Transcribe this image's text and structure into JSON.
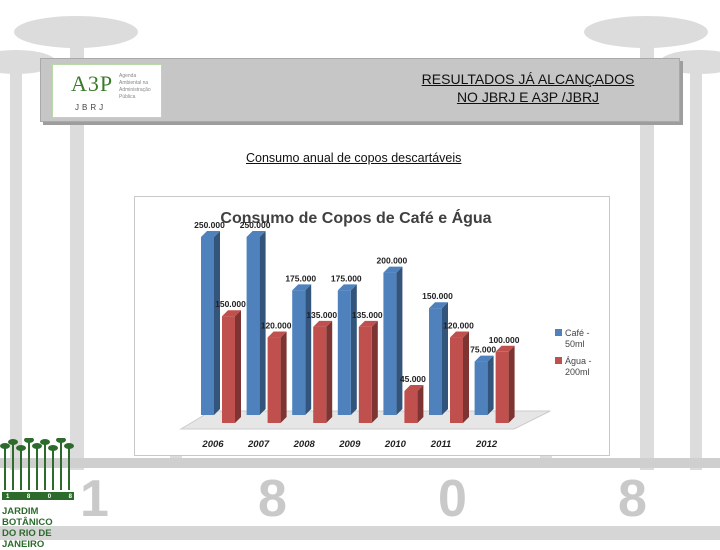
{
  "header": {
    "line1": "RESULTADOS JÁ ALCANÇADOS",
    "line2": "NO JBRJ E A3P /JBRJ"
  },
  "logo": {
    "brand": "A3P",
    "org": "JBRJ",
    "sub": [
      "Agenda",
      "Ambiental na",
      "Administração",
      "Pública"
    ]
  },
  "subtitle": "Consumo anual de copos descartáveis",
  "background": {
    "digits": [
      "1",
      "8",
      "0",
      "8"
    ]
  },
  "jbrj_logo": {
    "year_digits": [
      "1",
      "8",
      "0",
      "8"
    ],
    "line1": "JARDIM BOTÂNICO",
    "line2": "DO RIO DE JANEIRO"
  },
  "colors": {
    "cafe": "#4f81bd",
    "agua": "#c0504d",
    "title": "#404040",
    "header_band": "#c6c6c6"
  },
  "chart_data": {
    "type": "bar",
    "title": "Consumo de Copos de Café e Água",
    "categories": [
      "2006",
      "2007",
      "2008",
      "2009",
      "2010",
      "2011",
      "2012"
    ],
    "series": [
      {
        "name": "Café - 50ml",
        "values": [
          250000,
          250000,
          175000,
          175000,
          200000,
          150000,
          75000
        ],
        "labels": [
          "250.000",
          "250.000",
          "175.000",
          "175.000",
          "200.000",
          "150.000",
          "75.000"
        ]
      },
      {
        "name": "Água - 200ml",
        "values": [
          150000,
          120000,
          135000,
          135000,
          45000,
          120000,
          100000
        ],
        "labels": [
          "150.000",
          "120.000",
          "135.000",
          "135.000",
          "45.000",
          "120.000",
          "100.000"
        ]
      }
    ],
    "ylim": [
      0,
      250000
    ],
    "grid": false,
    "legend": "right",
    "style": "3d-columns"
  }
}
